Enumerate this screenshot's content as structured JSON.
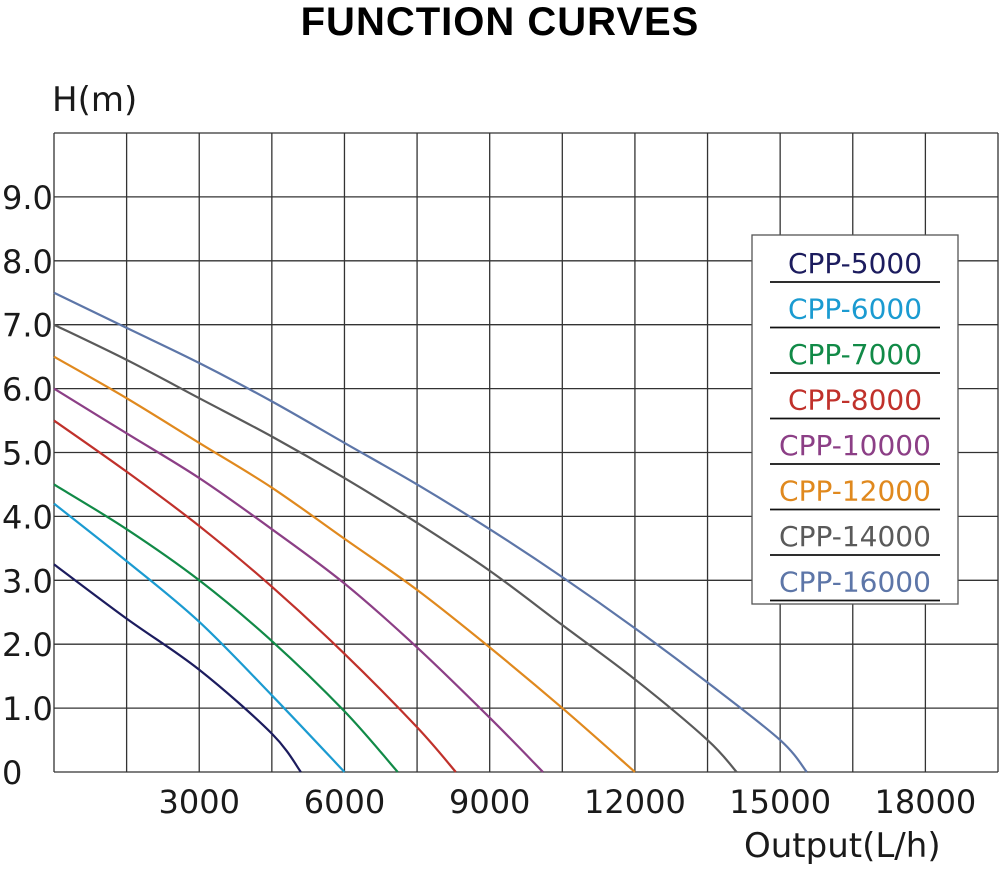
{
  "chart_data": {
    "type": "line",
    "title": "FUNCTION CURVES",
    "xlabel": "Output(L/h)",
    "ylabel": "H(m)",
    "xlim": [
      0,
      19500
    ],
    "ylim": [
      0,
      10
    ],
    "grid": true,
    "legend_position": "right",
    "x_ticks": [
      {
        "value": 3000,
        "label": "3000"
      },
      {
        "value": 6000,
        "label": "6000"
      },
      {
        "value": 9000,
        "label": "9000"
      },
      {
        "value": 12000,
        "label": "12000"
      },
      {
        "value": 15000,
        "label": "15000"
      },
      {
        "value": 18000,
        "label": "18000"
      }
    ],
    "y_ticks": [
      {
        "value": 0,
        "label": "0"
      },
      {
        "value": 1,
        "label": "1.0"
      },
      {
        "value": 2,
        "label": "2.0"
      },
      {
        "value": 3,
        "label": "3.0"
      },
      {
        "value": 4,
        "label": "4.0"
      },
      {
        "value": 5,
        "label": "5.0"
      },
      {
        "value": 6,
        "label": "6.0"
      },
      {
        "value": 7,
        "label": "7.0"
      },
      {
        "value": 8,
        "label": "8.0"
      },
      {
        "value": 9,
        "label": "9.0"
      }
    ],
    "series": [
      {
        "name": "CPP-5000",
        "color": "#1c1c5e",
        "x": [
          0,
          1500,
          3000,
          4500,
          5100
        ],
        "y": [
          3.25,
          2.4,
          1.6,
          0.6,
          0
        ]
      },
      {
        "name": "CPP-6000",
        "color": "#1b9bd1",
        "x": [
          0,
          1500,
          3000,
          4500,
          6000
        ],
        "y": [
          4.2,
          3.3,
          2.35,
          1.2,
          0
        ]
      },
      {
        "name": "CPP-7000",
        "color": "#118a47",
        "x": [
          0,
          1500,
          3000,
          4500,
          6000,
          7100
        ],
        "y": [
          4.5,
          3.8,
          3.0,
          2.05,
          0.95,
          0
        ]
      },
      {
        "name": "CPP-8000",
        "color": "#c0312b",
        "x": [
          0,
          1500,
          3000,
          4500,
          6000,
          7500,
          8300
        ],
        "y": [
          5.5,
          4.7,
          3.85,
          2.9,
          1.85,
          0.7,
          0
        ]
      },
      {
        "name": "CPP-10000",
        "color": "#8c3f86",
        "x": [
          0,
          1500,
          3000,
          4500,
          6000,
          7500,
          9000,
          10100
        ],
        "y": [
          6.0,
          5.3,
          4.6,
          3.8,
          2.95,
          1.95,
          0.85,
          0
        ]
      },
      {
        "name": "CPP-12000",
        "color": "#e0891e",
        "x": [
          0,
          1500,
          3000,
          4500,
          6000,
          7500,
          9000,
          10500,
          12000
        ],
        "y": [
          6.5,
          5.85,
          5.15,
          4.45,
          3.65,
          2.85,
          1.95,
          1.0,
          0
        ]
      },
      {
        "name": "CPP-14000",
        "color": "#5a5a5a",
        "x": [
          0,
          1500,
          3000,
          4500,
          6000,
          7500,
          9000,
          10500,
          12000,
          13500,
          14100
        ],
        "y": [
          7.0,
          6.45,
          5.85,
          5.25,
          4.6,
          3.9,
          3.15,
          2.3,
          1.45,
          0.5,
          0
        ]
      },
      {
        "name": "CPP-16000",
        "color": "#5d76a8",
        "x": [
          0,
          1500,
          3000,
          4500,
          6000,
          7500,
          9000,
          10500,
          12000,
          13500,
          15000,
          15550
        ],
        "y": [
          7.5,
          6.95,
          6.4,
          5.8,
          5.15,
          4.5,
          3.8,
          3.05,
          2.25,
          1.4,
          0.5,
          0
        ]
      }
    ]
  }
}
